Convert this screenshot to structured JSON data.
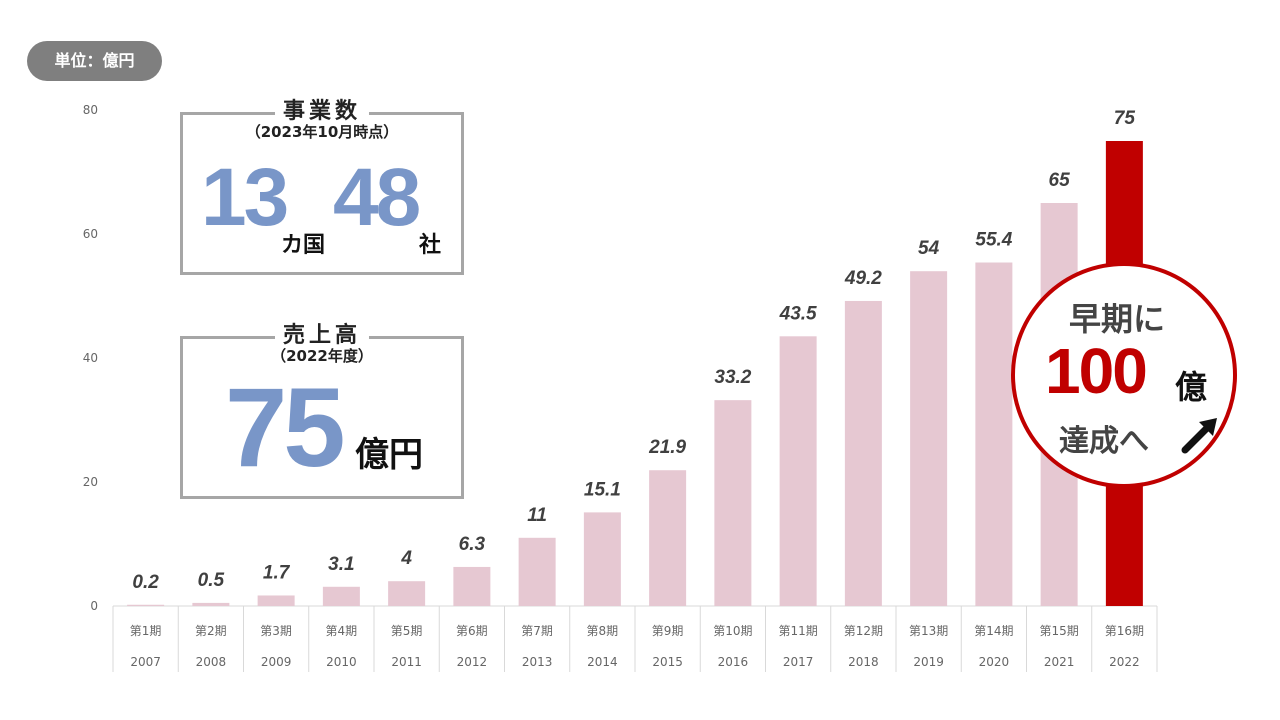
{
  "unit_badge": "単位：億円",
  "stat_boxes": {
    "business": {
      "title": "事業数",
      "subtitle": "（2023年10月時点）",
      "countries_value": "13",
      "countries_unit": "カ国",
      "companies_value": "48",
      "companies_unit": "社"
    },
    "sales": {
      "title": "売上高",
      "subtitle": "（2022年度）",
      "value": "75",
      "unit": "億円"
    }
  },
  "callout": {
    "line1": "早期に",
    "number": "100",
    "unit": "億",
    "line3": "達成へ",
    "arrow_icon": "arrow-up-right-icon"
  },
  "colors": {
    "bar": "#e6c8d2",
    "highlight_bar": "#c00000",
    "accent_blue": "#7996c8",
    "circle_border": "#c00000",
    "badge": "#7f7f7f"
  },
  "chart_data": {
    "type": "bar",
    "categories": [
      "第1期",
      "第2期",
      "第3期",
      "第4期",
      "第5期",
      "第6期",
      "第7期",
      "第8期",
      "第9期",
      "第10期",
      "第11期",
      "第12期",
      "第13期",
      "第14期",
      "第15期",
      "第16期"
    ],
    "years": [
      "2007",
      "2008",
      "2009",
      "2010",
      "2011",
      "2012",
      "2013",
      "2014",
      "2015",
      "2016",
      "2017",
      "2018",
      "2019",
      "2020",
      "2021",
      "2022"
    ],
    "values": [
      0.2,
      0.5,
      1.7,
      3.1,
      4,
      6.3,
      11,
      15.1,
      21.9,
      33.2,
      43.5,
      49.2,
      54,
      55.4,
      65,
      75
    ],
    "value_labels": [
      "0.2",
      "0.5",
      "1.7",
      "3.1",
      "4",
      "6.3",
      "11",
      "15.1",
      "21.9",
      "33.2",
      "43.5",
      "49.2",
      "54",
      "55.4",
      "65",
      "75"
    ],
    "highlight_index": 15,
    "yticks": [
      "0",
      "20",
      "40",
      "60",
      "80"
    ],
    "ylim": [
      0,
      80
    ],
    "grid": false
  }
}
